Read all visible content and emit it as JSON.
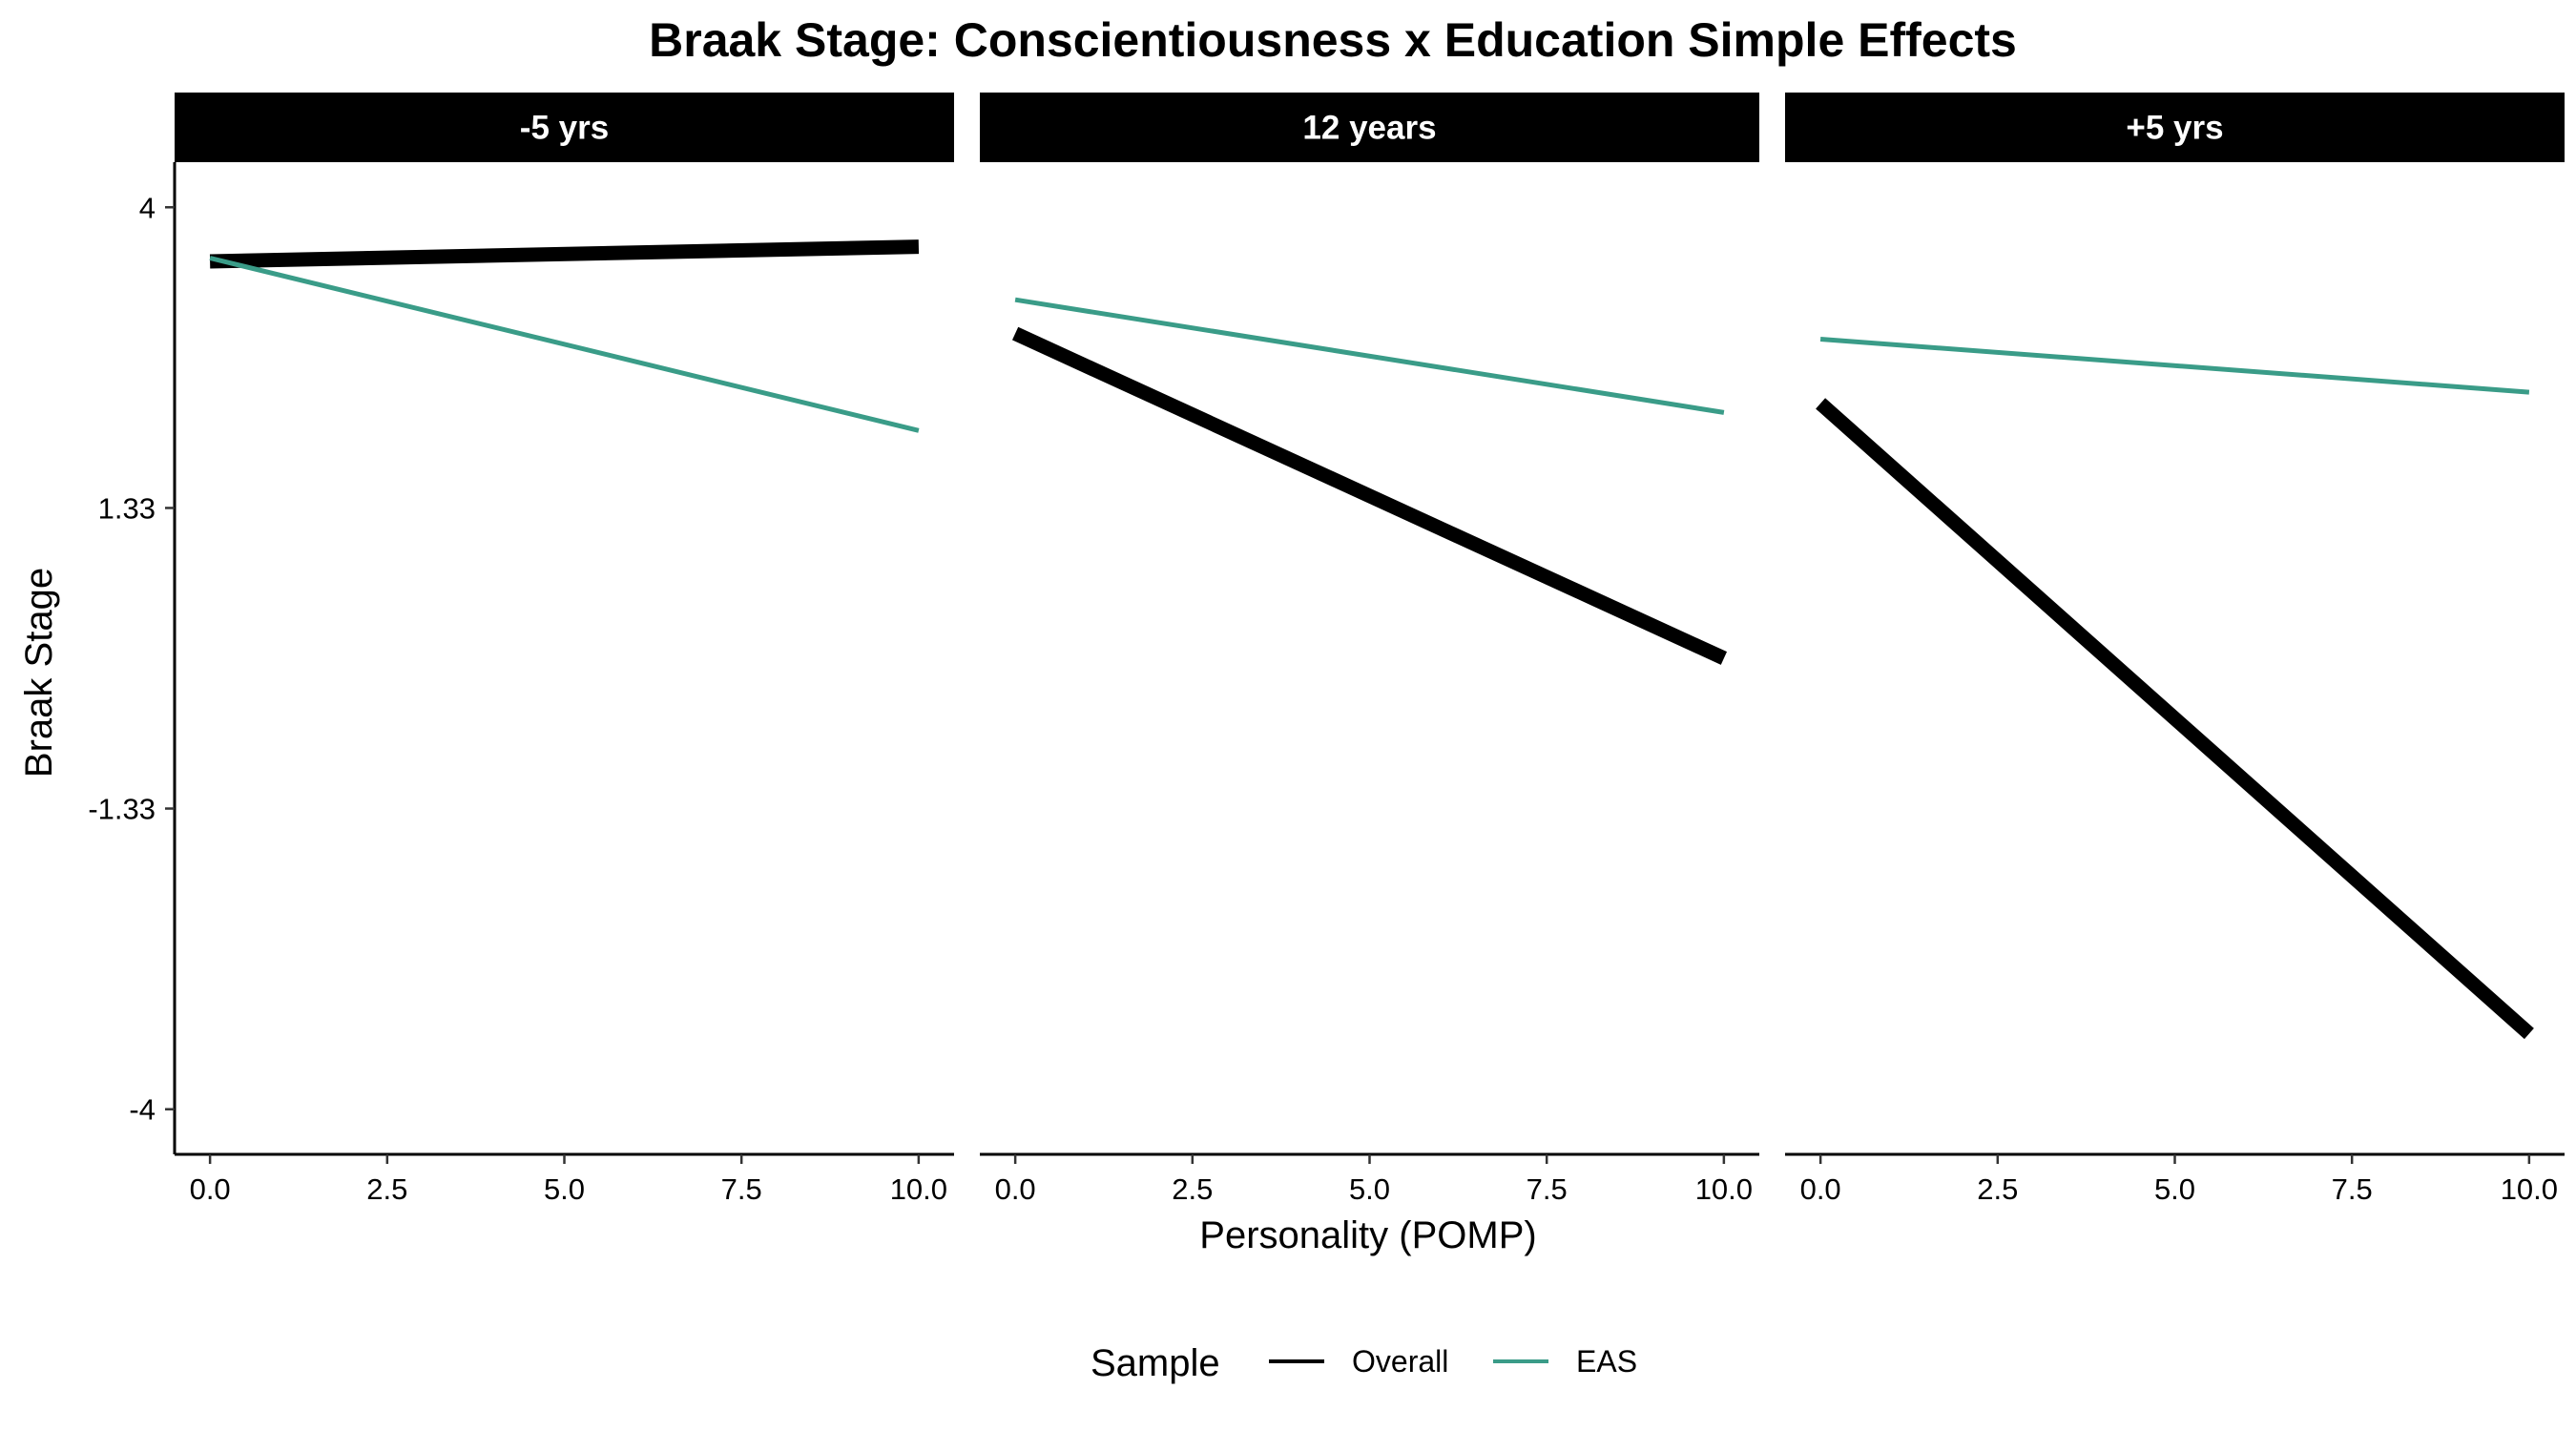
{
  "chart_data": {
    "type": "line",
    "title": "Braak Stage: Conscientiousness x Education Simple Effects",
    "xlabel": "Personality (POMP)",
    "ylabel": "Braak Stage",
    "x_ticks": [
      "0.0",
      "2.5",
      "5.0",
      "7.5",
      "10.0"
    ],
    "x_tick_values": [
      0,
      2.5,
      5,
      7.5,
      10
    ],
    "y_ticks": [
      "4",
      "1.33",
      "-1.33",
      "-4"
    ],
    "y_tick_values": [
      4,
      1.333,
      -1.333,
      -4
    ],
    "xlim": [
      -0.5,
      10.5
    ],
    "ylim": [
      -4.4,
      4.4
    ],
    "grid": false,
    "legend": {
      "title": "Sample",
      "position": "bottom",
      "entries": [
        {
          "label": "Overall",
          "color": "#000000",
          "width": 3
        },
        {
          "label": "EAS",
          "color": "#3a9c88",
          "width": 3
        }
      ]
    },
    "panels": [
      {
        "label": "-5 yrs",
        "series": [
          {
            "name": "Overall",
            "color": "#000000",
            "width": 15,
            "x": [
              0,
              10
            ],
            "y": [
              3.52,
              3.65
            ]
          },
          {
            "name": "EAS",
            "color": "#3a9c88",
            "width": 5,
            "x": [
              0,
              10
            ],
            "y": [
              3.55,
              2.02
            ]
          }
        ]
      },
      {
        "label": "12 years",
        "series": [
          {
            "name": "Overall",
            "color": "#000000",
            "width": 15,
            "x": [
              0,
              10
            ],
            "y": [
              2.88,
              0.0
            ]
          },
          {
            "name": "EAS",
            "color": "#3a9c88",
            "width": 5,
            "x": [
              0,
              10
            ],
            "y": [
              3.18,
              2.18
            ]
          }
        ]
      },
      {
        "label": "+5 yrs",
        "series": [
          {
            "name": "Overall",
            "color": "#000000",
            "width": 15,
            "x": [
              0,
              10
            ],
            "y": [
              2.26,
              -3.33
            ]
          },
          {
            "name": "EAS",
            "color": "#3a9c88",
            "width": 5,
            "x": [
              0,
              10
            ],
            "y": [
              2.83,
              2.36
            ]
          }
        ]
      }
    ]
  }
}
